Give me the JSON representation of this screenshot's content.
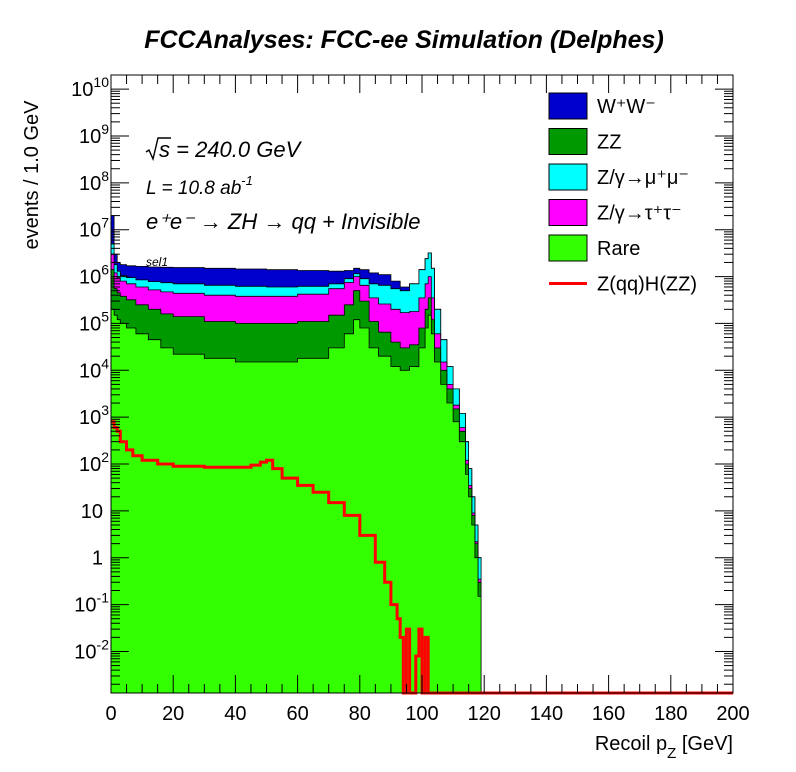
{
  "chart_data": {
    "type": "area",
    "title": "FCCAnalyses: FCC-ee Simulation (Delphes)",
    "xlabel_main": "Recoil p",
    "xlabel_sub": "Z",
    "xlabel_unit": " [GeV]",
    "ylabel": "events / 1.0 GeV",
    "xlim": [
      0,
      200
    ],
    "ylim": [
      0.0013,
      20000000000
    ],
    "yscale": "log",
    "x_ticks": [
      "0",
      "20",
      "40",
      "60",
      "80",
      "100",
      "120",
      "140",
      "160",
      "180",
      "200"
    ],
    "y_ticks": [
      {
        "base": "10",
        "exp": "-2"
      },
      {
        "base": "10",
        "exp": "-1"
      },
      {
        "base": "1",
        "exp": ""
      },
      {
        "base": "10",
        "exp": ""
      },
      {
        "base": "10",
        "exp": "2"
      },
      {
        "base": "10",
        "exp": "3"
      },
      {
        "base": "10",
        "exp": "4"
      },
      {
        "base": "10",
        "exp": "5"
      },
      {
        "base": "10",
        "exp": "6"
      },
      {
        "base": "10",
        "exp": "7"
      },
      {
        "base": "10",
        "exp": "8"
      },
      {
        "base": "10",
        "exp": "9"
      },
      {
        "base": "10",
        "exp": "10"
      }
    ],
    "annotations": {
      "sqrts": "s = 240.0 GeV",
      "lumi_main": "L = 10.8 ab",
      "lumi_exp": "-1",
      "process": "e⁺e⁻ → ZH → qq + Invisible",
      "selection": "sel1"
    },
    "legend_position": "top-right",
    "stack_order": [
      "Rare",
      "ZZ",
      "Z/γ→τ⁺τ⁻",
      "Z/γ→μ⁺μ⁻",
      "W⁺W⁻"
    ],
    "stacked_totals": {
      "x": [
        0,
        1,
        2,
        3,
        5,
        8,
        12,
        16,
        20,
        30,
        40,
        50,
        60,
        70,
        75,
        78,
        80,
        83,
        86,
        90,
        93,
        96,
        99,
        101,
        102,
        103,
        104,
        106,
        108,
        110,
        112,
        114,
        115,
        116,
        117,
        118,
        119
      ],
      "series": [
        {
          "name": "Rare",
          "color": "#33ff00",
          "values": [
            200000,
            150000,
            120000,
            100000,
            80000,
            60000,
            45000,
            30000,
            22000,
            18000,
            15000,
            15000,
            18000,
            30000,
            60000,
            120000,
            80000,
            30000,
            20000,
            12000,
            10000,
            12000,
            30000,
            80000,
            150000,
            60000,
            15000,
            5000,
            2000,
            800,
            300,
            60,
            20,
            5,
            1,
            0.15,
            0.001
          ]
        },
        {
          "name": "ZZ",
          "color": "#009900",
          "values": [
            1400000,
            550000,
            450000,
            380000,
            320000,
            250000,
            200000,
            160000,
            140000,
            110000,
            100000,
            100000,
            110000,
            150000,
            250000,
            500000,
            300000,
            110000,
            65000,
            40000,
            30000,
            35000,
            80000,
            200000,
            350000,
            120000,
            30000,
            10000,
            4000,
            1500,
            500,
            100,
            30,
            8,
            2,
            0.3,
            0.001
          ]
        },
        {
          "name": "Z/γ→τ⁺τ⁻",
          "color": "#ff00ff",
          "values": [
            3000000,
            1200000,
            950000,
            800000,
            700000,
            600000,
            520000,
            470000,
            440000,
            400000,
            380000,
            380000,
            420000,
            550000,
            750000,
            1000000,
            650000,
            350000,
            260000,
            200000,
            170000,
            180000,
            350000,
            700000,
            1000000,
            350000,
            60000,
            15000,
            5000,
            1800,
            600,
            120,
            35,
            9,
            2.2,
            0.35,
            0.001
          ]
        },
        {
          "name": "Z/γ→μ⁺μ⁻",
          "color": "#00ffff",
          "values": [
            5000000,
            1800000,
            1300000,
            1050000,
            950000,
            850000,
            780000,
            740000,
            700000,
            650000,
            620000,
            600000,
            620000,
            700000,
            900000,
            1150000,
            900000,
            700000,
            650000,
            550000,
            500000,
            700000,
            1400000,
            2400000,
            3200000,
            1500000,
            200000,
            45000,
            12000,
            4000,
            1200,
            300,
            80,
            20,
            5,
            1,
            0.001
          ]
        },
        {
          "name": "W⁺W⁻",
          "color": "#0000cc",
          "values": [
            20000000,
            3000000,
            2000000,
            1800000,
            1700000,
            1650000,
            1600000,
            1580000,
            1560000,
            1500000,
            1450000,
            1400000,
            1350000,
            1300000,
            1350000,
            1500000,
            1400000,
            1200000,
            1100000,
            800000,
            600000,
            700000,
            1400000,
            2400000,
            3200000,
            1500000,
            200000,
            45000,
            12000,
            4000,
            1200,
            300,
            80,
            20,
            5,
            1,
            0.001
          ]
        }
      ]
    },
    "signal": {
      "name": "Z(qq)H(ZZ)",
      "color": "#ff0000",
      "x": [
        0,
        1,
        2,
        3,
        5,
        7,
        10,
        15,
        20,
        30,
        40,
        45,
        48,
        50,
        52,
        55,
        60,
        65,
        70,
        75,
        80,
        85,
        88,
        90,
        92,
        93,
        94,
        95,
        96,
        97,
        98,
        99,
        100,
        101,
        102,
        104
      ],
      "values": [
        800,
        600,
        500,
        300,
        200,
        150,
        120,
        100,
        90,
        85,
        85,
        95,
        110,
        120,
        80,
        50,
        35,
        25,
        15,
        8,
        3,
        0.8,
        0.3,
        0.1,
        0.05,
        0.02,
        0.001,
        0.03,
        0.001,
        0.001,
        0.008,
        0.03,
        0.001,
        0.02,
        0.001,
        0.001
      ]
    },
    "legend": [
      {
        "label": "W⁺W⁻",
        "color": "#0000cc",
        "kind": "fill"
      },
      {
        "label": "ZZ",
        "color": "#009900",
        "kind": "fill"
      },
      {
        "label": "Z/γ→μ⁺μ⁻",
        "color": "#00ffff",
        "kind": "fill"
      },
      {
        "label": "Z/γ→τ⁺τ⁻",
        "color": "#ff00ff",
        "kind": "fill"
      },
      {
        "label": "Rare",
        "color": "#33ff00",
        "kind": "fill"
      },
      {
        "label": "Z(qq)H(ZZ)",
        "color": "#ff0000",
        "kind": "line"
      }
    ]
  }
}
